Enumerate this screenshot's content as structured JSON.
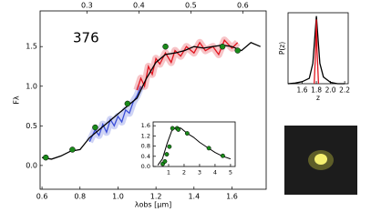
{
  "chart_data": [
    {
      "type": "line",
      "annotation": "376",
      "xlabel": "λobs [μm]",
      "ylabel": "Fλ",
      "xlim": [
        0.59,
        1.78
      ],
      "ylim": [
        -0.3,
        1.95
      ],
      "xticks": [
        0.6,
        0.8,
        {
          "value": 1,
          "label": "1.0"
        },
        1.2,
        1.4,
        1.6
      ],
      "yticks": [
        {
          "value": 0,
          "label": "0.0"
        },
        0.5,
        {
          "value": 1,
          "label": "1.0"
        },
        1.5
      ],
      "x2lim": [
        0.21,
        0.645
      ],
      "x2ticks": [
        0.3,
        0.4,
        0.5,
        0.6
      ],
      "series": [
        {
          "color": "#3b4fd8",
          "x": [
            0.85,
            0.88,
            0.9,
            0.92,
            0.94,
            0.96,
            0.98,
            1.0,
            1.02,
            1.04,
            1.06,
            1.08,
            1.1,
            1.12
          ],
          "values": [
            0.3,
            0.45,
            0.38,
            0.52,
            0.42,
            0.58,
            0.5,
            0.62,
            0.55,
            0.7,
            0.66,
            0.8,
            0.88,
            1.0
          ]
        },
        {
          "color": "#e0141e",
          "x": [
            1.1,
            1.12,
            1.14,
            1.16,
            1.18,
            1.2,
            1.22,
            1.25,
            1.28,
            1.3,
            1.33,
            1.36,
            1.4,
            1.43,
            1.46,
            1.5,
            1.53,
            1.56,
            1.6,
            1.63
          ],
          "values": [
            0.95,
            1.1,
            1.0,
            1.25,
            1.15,
            1.35,
            1.28,
            1.42,
            1.3,
            1.45,
            1.38,
            1.5,
            1.42,
            1.55,
            1.45,
            1.5,
            1.4,
            1.58,
            1.48,
            1.55
          ]
        },
        {
          "color": "#000000",
          "x": [
            0.6,
            0.65,
            0.7,
            0.75,
            0.8,
            0.85,
            0.9,
            0.95,
            1.0,
            1.05,
            1.1,
            1.15,
            1.2,
            1.25,
            1.3,
            1.35,
            1.4,
            1.45,
            1.5,
            1.55,
            1.6,
            1.65,
            1.7,
            1.75
          ],
          "values": [
            0.1,
            0.08,
            0.12,
            0.18,
            0.2,
            0.35,
            0.45,
            0.55,
            0.65,
            0.75,
            0.85,
            1.1,
            1.3,
            1.4,
            1.42,
            1.45,
            1.5,
            1.48,
            1.5,
            1.52,
            1.5,
            1.45,
            1.55,
            1.5
          ]
        }
      ],
      "points": {
        "color": "#1a8a1a",
        "x": [
          0.62,
          0.76,
          0.88,
          1.05,
          1.25,
          1.55,
          1.63
        ],
        "values": [
          0.1,
          0.2,
          0.48,
          0.78,
          1.5,
          1.5,
          1.45
        ]
      }
    },
    {
      "type": "line",
      "xlim": [
        0,
        5.3
      ],
      "ylim": [
        0,
        1.75
      ],
      "xticks": [
        1,
        2,
        3,
        4,
        5
      ],
      "yticks": [
        {
          "value": 0,
          "label": "0.0"
        },
        0.4,
        0.8,
        1.2,
        1.6
      ],
      "series": [
        {
          "color": "#000000",
          "x": [
            0.3,
            0.6,
            0.9,
            1.2,
            1.5,
            1.8,
            2.2,
            2.6,
            3.0,
            3.5,
            4.0,
            4.5,
            5.0
          ],
          "values": [
            0.05,
            0.3,
            0.9,
            1.4,
            1.55,
            1.5,
            1.3,
            1.15,
            0.95,
            0.75,
            0.55,
            0.4,
            0.3
          ]
        }
      ],
      "points": {
        "color": "#1a8a1a",
        "x": [
          0.62,
          0.76,
          0.88,
          1.05,
          1.25,
          1.55,
          1.63,
          2.2,
          3.6,
          4.5
        ],
        "values": [
          0.1,
          0.2,
          0.48,
          0.78,
          1.5,
          1.5,
          1.45,
          1.3,
          0.72,
          0.42
        ]
      }
    },
    {
      "type": "line",
      "xlabel": "z",
      "ylabel": "P(z)",
      "xlim": [
        1.4,
        2.25
      ],
      "ylim": [
        0,
        1.05
      ],
      "xticks": [
        1.6,
        1.8,
        {
          "value": 2,
          "label": "2.0"
        },
        2.2
      ],
      "yticks": [],
      "series": [
        {
          "color": "#000000",
          "x": [
            1.4,
            1.5,
            1.6,
            1.7,
            1.75,
            1.8,
            1.85,
            1.9,
            2.0,
            2.1,
            2.2
          ],
          "values": [
            0,
            0.01,
            0.03,
            0.08,
            0.3,
            1,
            0.3,
            0.1,
            0.02,
            0,
            0
          ]
        },
        {
          "color": "#e0141e",
          "x": [
            1.77,
            1.79,
            1.8,
            1.81,
            1.83
          ],
          "values": [
            0,
            0.5,
            0.95,
            0.5,
            0
          ]
        }
      ]
    }
  ]
}
